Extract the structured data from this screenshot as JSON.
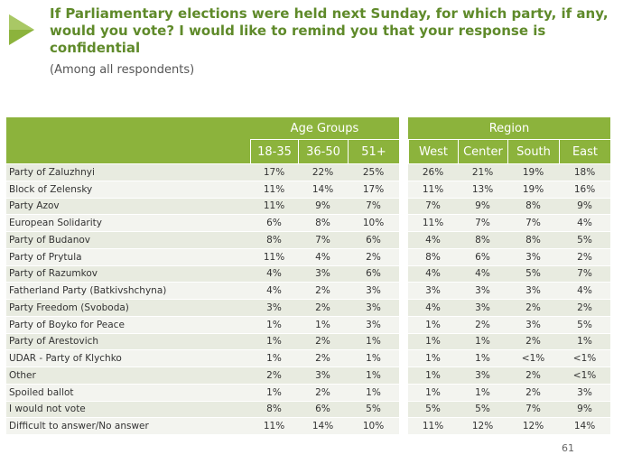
{
  "header": {
    "title": "If Parliamentary elections were held next Sunday, for which party, if any, would you vote? I would like to remind you that your response is confidential",
    "subtitle": "(Among all respondents)"
  },
  "table": {
    "groups": [
      {
        "label": "Age Groups",
        "columns": [
          "18-35",
          "36-50",
          "51+"
        ]
      },
      {
        "label": "Region",
        "columns": [
          "West",
          "Center",
          "South",
          "East"
        ]
      }
    ],
    "rows": [
      {
        "label": "Party of Zaluzhnyi",
        "cells": [
          "17%",
          "22%",
          "25%",
          "26%",
          "21%",
          "19%",
          "18%"
        ]
      },
      {
        "label": "Block of Zelensky",
        "cells": [
          "11%",
          "14%",
          "17%",
          "11%",
          "13%",
          "19%",
          "16%"
        ]
      },
      {
        "label": "Party Azov",
        "cells": [
          "11%",
          "9%",
          "7%",
          "7%",
          "9%",
          "8%",
          "9%"
        ]
      },
      {
        "label": "European Solidarity",
        "cells": [
          "6%",
          "8%",
          "10%",
          "11%",
          "7%",
          "7%",
          "4%"
        ]
      },
      {
        "label": "Party of Budanov",
        "cells": [
          "8%",
          "7%",
          "6%",
          "4%",
          "8%",
          "8%",
          "5%"
        ]
      },
      {
        "label": "Party of Prytula",
        "cells": [
          "11%",
          "4%",
          "2%",
          "8%",
          "6%",
          "3%",
          "2%"
        ]
      },
      {
        "label": "Party of Razumkov",
        "cells": [
          "4%",
          "3%",
          "6%",
          "4%",
          "4%",
          "5%",
          "7%"
        ]
      },
      {
        "label": "Fatherland Party (Batkivshchyna)",
        "cells": [
          "4%",
          "2%",
          "3%",
          "3%",
          "3%",
          "3%",
          "4%"
        ]
      },
      {
        "label": "Party Freedom (Svoboda)",
        "cells": [
          "3%",
          "2%",
          "3%",
          "4%",
          "3%",
          "2%",
          "2%"
        ]
      },
      {
        "label": "Party of Boyko for Peace",
        "cells": [
          "1%",
          "1%",
          "3%",
          "1%",
          "2%",
          "3%",
          "5%"
        ]
      },
      {
        "label": "Party of Arestovich",
        "cells": [
          "1%",
          "2%",
          "1%",
          "1%",
          "1%",
          "2%",
          "1%"
        ]
      },
      {
        "label": "UDAR - Party of Klychko",
        "cells": [
          "1%",
          "2%",
          "1%",
          "1%",
          "1%",
          "<1%",
          "<1%"
        ]
      },
      {
        "label": "Other",
        "cells": [
          "2%",
          "3%",
          "1%",
          "1%",
          "3%",
          "2%",
          "<1%"
        ]
      },
      {
        "label": "Spoiled ballot",
        "cells": [
          "1%",
          "2%",
          "1%",
          "1%",
          "1%",
          "2%",
          "3%"
        ]
      },
      {
        "label": "I would not vote",
        "cells": [
          "8%",
          "6%",
          "5%",
          "5%",
          "5%",
          "7%",
          "9%"
        ]
      },
      {
        "label": "Difficult to answer/No answer",
        "cells": [
          "11%",
          "14%",
          "10%",
          "11%",
          "12%",
          "12%",
          "14%"
        ]
      }
    ]
  },
  "page_number": "61"
}
